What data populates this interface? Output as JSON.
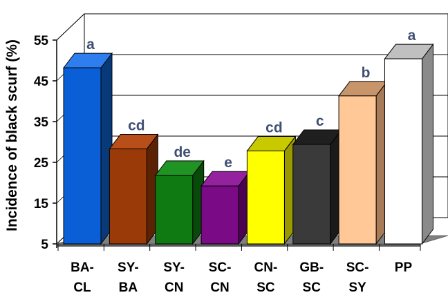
{
  "chart_data": {
    "type": "bar",
    "ylabel": "Incidence of black scurf  (%)",
    "ylim": [
      5,
      55
    ],
    "yticks": [
      5,
      15,
      25,
      35,
      45,
      55
    ],
    "grid": true,
    "three_d": true,
    "categories": [
      {
        "line1": "BA-",
        "line2": "CL"
      },
      {
        "line1": "SY-",
        "line2": "BA"
      },
      {
        "line1": "SY-",
        "line2": "CN"
      },
      {
        "line1": "SC-",
        "line2": "CN"
      },
      {
        "line1": "CN-",
        "line2": "SC"
      },
      {
        "line1": "GB-",
        "line2": "SC"
      },
      {
        "line1": "SC-",
        "line2": "SY"
      },
      {
        "line1": "PP",
        "line2": ""
      }
    ],
    "values": [
      48.2,
      28.3,
      21.8,
      19.2,
      27.8,
      29.4,
      41.3,
      50.4
    ],
    "significance": [
      "a",
      "cd",
      "de",
      "e",
      "cd",
      "c",
      "b",
      "a"
    ],
    "colors": [
      {
        "front": "#0a5fd6",
        "top": "#2f7ef0",
        "side": "#083a7a"
      },
      {
        "front": "#9a3a08",
        "top": "#b84e18",
        "side": "#5b2304"
      },
      {
        "front": "#0f7a12",
        "top": "#1f9424",
        "side": "#084a0a"
      },
      {
        "front": "#7a0a86",
        "top": "#94229e",
        "side": "#4a0452"
      },
      {
        "front": "#ffff00",
        "top": "#c9c900",
        "side": "#9a9a00"
      },
      {
        "front": "#3a3a3a",
        "top": "#1f1f1f",
        "side": "#1a1a1a"
      },
      {
        "front": "#ffc896",
        "top": "#c8956a",
        "side": "#a77b55"
      },
      {
        "front": "#ffffff",
        "top": "#c0c0c0",
        "side": "#8a8a8a"
      }
    ]
  }
}
